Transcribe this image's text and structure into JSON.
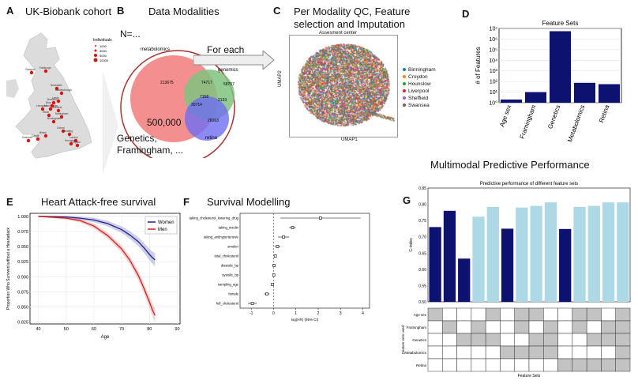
{
  "panelA": {
    "letter": "A",
    "title": "UK-Biobank cohort",
    "legend_title": "Individuals",
    "legend_items": [
      "1000",
      "3000",
      "5000",
      "10000"
    ],
    "cities": [
      "Edinburgh",
      "Glasgow",
      "Newcastle",
      "Middlesbrough",
      "Leeds",
      "Bradford",
      "Manchester",
      "Liverpool",
      "Sheffield",
      "Stoke",
      "Nottingham",
      "Birmingham",
      "Oxford",
      "Reading",
      "Bristol",
      "Cardiff",
      "Swansea",
      "London",
      "Croydon",
      "Hounslow",
      "Bury"
    ]
  },
  "panelB": {
    "letter": "B",
    "title": "Data Modalities",
    "n_label": "N=...",
    "metabolomics_label": "metabolomics",
    "genomics_label": "genomics",
    "retina_label": "retina",
    "venn_values": [
      "213675",
      "74717",
      "58757",
      "7158",
      "30714",
      "2133",
      "26063"
    ],
    "total": "500,000",
    "bottom_text_1": "Genetics,",
    "bottom_text_2": "Framingham, ...",
    "arrow_label": "For each"
  },
  "panelC": {
    "letter": "C",
    "title_line1": "Per Modality QC, Feature",
    "title_line2": "selection and Imputation",
    "plot_title": "Assesment center",
    "xlabel": "UMAP1",
    "ylabel": "UMAP2",
    "legend": [
      {
        "name": "Birmingham",
        "color": "#1f77b4"
      },
      {
        "name": "Croydon",
        "color": "#ff7f0e"
      },
      {
        "name": "Hounslow",
        "color": "#2ca02c"
      },
      {
        "name": "Liverpool",
        "color": "#d62728"
      },
      {
        "name": "Sheffield",
        "color": "#9467bd"
      },
      {
        "name": "Swansea",
        "color": "#8c564b"
      }
    ]
  },
  "panelD": {
    "letter": "D",
    "chart_data": {
      "type": "bar",
      "title": "Feature Sets",
      "ylabel": "# of Features",
      "log_scale": true,
      "categories": [
        "Age sex",
        "Framingham",
        "Genetics",
        "Metabolomics",
        "Retina"
      ],
      "values": [
        2,
        10,
        5500000,
        75,
        56
      ],
      "yticks": [
        "10⁰",
        "10¹",
        "10²",
        "10³",
        "10⁴",
        "10⁵",
        "10⁶",
        "10⁷"
      ],
      "color": "#0d1270"
    }
  },
  "panelE": {
    "letter": "E",
    "title": "Heart Attack-free survival",
    "chart_data": {
      "type": "line",
      "xlabel": "Age",
      "ylabel": "Proportion Who Survived without a Heartattack",
      "xticks": [
        "40",
        "50",
        "60",
        "70",
        "80",
        "90"
      ],
      "yticks": [
        "1.000",
        "0.975",
        "0.950",
        "0.925",
        "0.900",
        "0.875",
        "0.850",
        "0.825"
      ],
      "xlim": [
        37,
        91
      ],
      "ylim": [
        0.822,
        1.005
      ],
      "series": [
        {
          "name": "Women",
          "color": "#1f1f8f",
          "x": [
            40,
            50,
            55,
            60,
            65,
            70,
            73,
            76,
            78,
            80,
            81,
            82
          ],
          "y": [
            1.0,
            0.999,
            0.997,
            0.994,
            0.988,
            0.978,
            0.969,
            0.958,
            0.948,
            0.937,
            0.932,
            0.928
          ]
        },
        {
          "name": "Men",
          "color": "#d62020",
          "x": [
            40,
            50,
            55,
            60,
            65,
            70,
            73,
            76,
            78,
            80,
            81,
            82
          ],
          "y": [
            1.0,
            0.997,
            0.993,
            0.984,
            0.968,
            0.946,
            0.927,
            0.902,
            0.881,
            0.858,
            0.846,
            0.836
          ]
        }
      ]
    }
  },
  "panelF": {
    "letter": "F",
    "title": "Survival Modelling",
    "chart_data": {
      "type": "scatter",
      "xlabel": "log(HR) (95% CI)",
      "xticks": [
        "-1",
        "0",
        "1",
        "2",
        "3",
        "4"
      ],
      "xlim": [
        -1.5,
        4.3
      ],
      "covariates": [
        "taking_cholesterol_lowering_drug",
        "taking_insulin",
        "taking_antihypertensive",
        "smoker",
        "total_cholesterol",
        "diastolic_bp",
        "systolic_bp",
        "sampling_age",
        "female",
        "hdl_cholesterol"
      ],
      "estimates": [
        2.1,
        0.85,
        0.45,
        0.18,
        0.08,
        0.02,
        0.01,
        -0.05,
        -0.3,
        -0.95
      ],
      "ci_low": [
        0.3,
        0.7,
        0.2,
        0.05,
        0.03,
        -0.02,
        -0.03,
        -0.08,
        -0.42,
        -1.15
      ],
      "ci_high": [
        3.9,
        1.0,
        0.7,
        0.3,
        0.13,
        0.06,
        0.05,
        -0.02,
        -0.18,
        -0.75
      ]
    }
  },
  "panelG": {
    "letter": "G",
    "title": "Multimodal Predictive Performance",
    "chart_data": {
      "type": "bar",
      "title": "Predictive performance of different feature sets",
      "ylabel": "C-index",
      "xlabel": "Feature Sets",
      "ylim": [
        0.5,
        0.85
      ],
      "yticks": [
        "0.50",
        "0.55",
        "0.60",
        "0.65",
        "0.70",
        "0.75",
        "0.80",
        "0.85"
      ],
      "values": [
        0.73,
        0.78,
        0.633,
        0.762,
        0.792,
        0.725,
        0.79,
        0.795,
        0.806,
        0.724,
        0.792,
        0.795,
        0.806,
        0.806
      ],
      "dark_bars": [
        0,
        1,
        2,
        5,
        9
      ],
      "dark_color": "#0d1270",
      "light_color": "#add8e6",
      "row_labels": [
        "Age sex",
        "Framingham",
        "Genetics",
        "Metabolomics",
        "Retina"
      ],
      "grid": [
        [
          1,
          0,
          0,
          0,
          1,
          0,
          1,
          1,
          0,
          0,
          1,
          1,
          0,
          1
        ],
        [
          0,
          1,
          0,
          1,
          0,
          0,
          1,
          0,
          1,
          0,
          1,
          0,
          1,
          1
        ],
        [
          0,
          0,
          1,
          1,
          1,
          0,
          0,
          1,
          1,
          0,
          0,
          1,
          1,
          1
        ],
        [
          0,
          0,
          0,
          0,
          0,
          1,
          1,
          1,
          1,
          0,
          0,
          0,
          0,
          1
        ],
        [
          0,
          0,
          0,
          0,
          0,
          0,
          0,
          0,
          0,
          1,
          1,
          1,
          1,
          1
        ]
      ]
    }
  }
}
